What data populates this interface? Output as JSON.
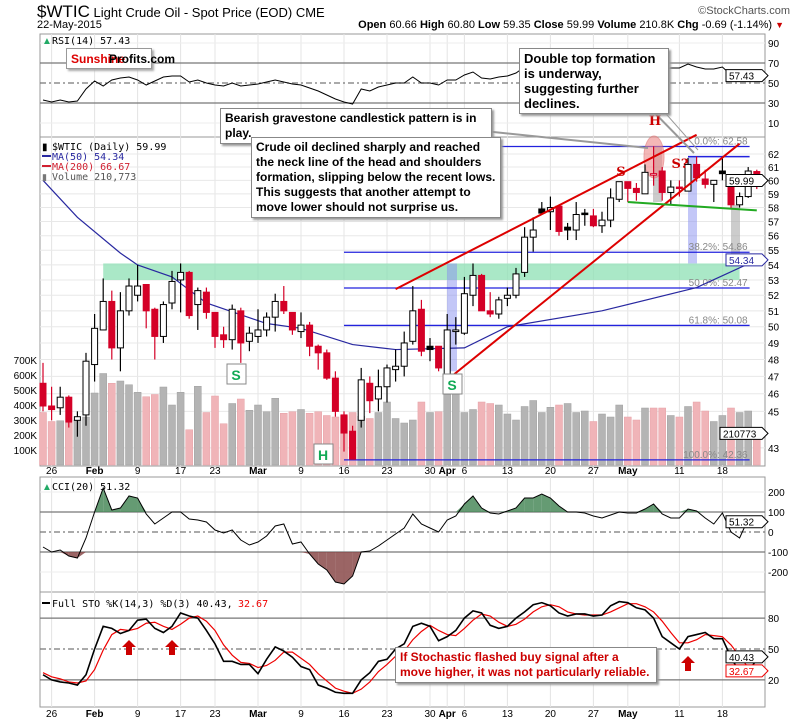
{
  "header": {
    "symbol": "$WTIC",
    "name": "Light Crude Oil - Spot Price (EOD)",
    "exchange": "CME",
    "date": "22-May-2015",
    "brand": "©StockCharts.com",
    "quote": {
      "open_label": "Open",
      "open": "60.66",
      "high_label": "High",
      "high": "60.80",
      "low_label": "Low",
      "low": "59.35",
      "close_label": "Close",
      "close": "59.99",
      "volume_label": "Volume",
      "volume": "210.8K",
      "chg_label": "Chg",
      "chg": "-0.69 (-1.14%)"
    }
  },
  "watermark": {
    "part1": "Sunshine",
    "part2": "Profits.com"
  },
  "panels": {
    "rsi": {
      "legend": "RSI(14) 57.43",
      "ticks": [
        "90",
        "70",
        "50",
        "30",
        "10"
      ],
      "last": "57.43"
    },
    "price": {
      "legend": "$WTIC (Daily) 59.99",
      "ma50": "MA(50) 54.34",
      "ma200": "MA(200) 66.67",
      "volume": "Volume 210,773",
      "ticks": [
        "62",
        "61",
        "60",
        "59",
        "58",
        "57",
        "56",
        "55",
        "54",
        "53",
        "52",
        "51",
        "50",
        "49",
        "48",
        "47",
        "46",
        "45",
        "43"
      ],
      "vol_ticks": [
        "700K",
        "600K",
        "500K",
        "400K",
        "300K",
        "200K",
        "100K"
      ],
      "last": "59.99",
      "ma_last": "54.34",
      "vol_last": "210773"
    },
    "cci": {
      "legend": "CCI(20) 51.32",
      "ticks": [
        "200",
        "100",
        "0",
        "-100",
        "-200"
      ],
      "last": "51.32"
    },
    "sto": {
      "legend_a": "Full STO %K(14,3) %D(3) 40.43,",
      "legend_b": "32.67",
      "ticks": [
        "80",
        "50",
        "20"
      ],
      "k_last": "40.43",
      "d_last": "32.67"
    }
  },
  "xaxis": [
    {
      "label": "26",
      "date": "1/26"
    },
    {
      "label": "Feb",
      "date": "2/2",
      "bold": true
    },
    {
      "label": "9",
      "date": "2/9"
    },
    {
      "label": "17",
      "date": "2/17"
    },
    {
      "label": "23",
      "date": "2/23"
    },
    {
      "label": "Mar",
      "date": "3/2",
      "bold": true
    },
    {
      "label": "9",
      "date": "3/9"
    },
    {
      "label": "16",
      "date": "3/16"
    },
    {
      "label": "23",
      "date": "3/23"
    },
    {
      "label": "30",
      "date": "3/30"
    },
    {
      "label": "Apr",
      "date": "4/1",
      "bold": true
    },
    {
      "label": "6",
      "date": "4/6"
    },
    {
      "label": "13",
      "date": "4/13"
    },
    {
      "label": "20",
      "date": "4/20"
    },
    {
      "label": "27",
      "date": "4/27"
    },
    {
      "label": "May",
      "date": "5/1",
      "bold": true
    },
    {
      "label": "11",
      "date": "5/11"
    },
    {
      "label": "18",
      "date": "5/18"
    }
  ],
  "annotations": {
    "double_top": "Double top formation is underway, suggesting further declines.",
    "gravestone": "Bearish gravestone candlestick pattern is in play.",
    "neckline": "Crude oil declined sharply and reached the neck line of the head and shoulders formation, slipping below the recent lows. This suggests that another attempt to move lower should not surprise us.",
    "stochastic": "If Stochastic flashed buy signal after a move higher, it was not particularly reliable.",
    "pattern_labels": {
      "head_red": "H",
      "shoulder_red": "S",
      "shoulder_q": "S?",
      "shoulder_green_1": "S",
      "shoulder_green_2": "S",
      "head_green": "H"
    }
  },
  "fib_levels": [
    {
      "label": "0.0%: 62.58",
      "price": 62.58
    },
    {
      "label": "38.2%: 54.86",
      "price": 54.86
    },
    {
      "label": "50.0%: 52.47",
      "price": 52.47
    },
    {
      "label": "61.8%: 50.08",
      "price": 50.08
    },
    {
      "label": "100.0%: 42.36",
      "price": 42.36
    }
  ],
  "colors": {
    "down": "#d40027",
    "up": "#000000",
    "volume_up": "#b4b4b4",
    "volume_down": "#f0b4b8",
    "ma50": "#2828a0",
    "fib": "#2222dd",
    "channel": "#dd0000",
    "neckline": "#22aa22",
    "zone": "#8ee0b4",
    "pattern_green": "#11aa55"
  },
  "chart_data": {
    "type": "candlestick",
    "price_scale": "log",
    "ylim": [
      42.2,
      63.2
    ],
    "candles_fields": [
      "date",
      "open",
      "high",
      "low",
      "close",
      "volume_k"
    ],
    "candles": [
      [
        "1/23",
        46.6,
        47.8,
        45.0,
        45.3,
        350
      ],
      [
        "1/26",
        45.3,
        46.4,
        44.5,
        45.1,
        290
      ],
      [
        "1/27",
        45.2,
        46.4,
        44.8,
        45.8,
        295
      ],
      [
        "1/28",
        45.8,
        45.9,
        44.1,
        44.4,
        280
      ],
      [
        "1/29",
        44.5,
        45.0,
        43.6,
        44.7,
        300
      ],
      [
        "1/30",
        44.8,
        48.4,
        44.2,
        47.9,
        320
      ],
      [
        "2/2",
        47.7,
        50.8,
        46.7,
        49.9,
        480
      ],
      [
        "2/3",
        49.8,
        53.1,
        49.8,
        51.6,
        610
      ],
      [
        "2/4",
        51.6,
        52.3,
        48.0,
        48.7,
        545
      ],
      [
        "2/5",
        48.7,
        52.2,
        47.3,
        51.0,
        560
      ],
      [
        "2/6",
        51.0,
        53.1,
        50.7,
        52.6,
        535
      ],
      [
        "2/9",
        52.0,
        54.0,
        51.6,
        52.6,
        485
      ],
      [
        "2/10",
        52.7,
        52.7,
        49.9,
        51.0,
        455
      ],
      [
        "2/11",
        51.1,
        51.2,
        48.0,
        49.4,
        470
      ],
      [
        "2/12",
        49.4,
        51.6,
        49.0,
        51.4,
        520
      ],
      [
        "2/13",
        51.5,
        53.6,
        51.1,
        52.9,
        400
      ],
      [
        "2/17",
        53.0,
        54.1,
        50.9,
        53.5,
        485
      ],
      [
        "2/18",
        53.5,
        53.6,
        50.5,
        50.7,
        235
      ],
      [
        "2/19",
        51.4,
        52.5,
        49.8,
        52.3,
        525
      ],
      [
        "2/20",
        52.2,
        52.5,
        50.5,
        50.9,
        350
      ],
      [
        "2/23",
        50.9,
        50.9,
        48.7,
        49.4,
        460
      ],
      [
        "2/24",
        49.5,
        50.0,
        48.7,
        49.2,
        275
      ],
      [
        "2/25",
        49.2,
        51.4,
        48.6,
        51.1,
        410
      ],
      [
        "2/26",
        51.0,
        51.2,
        47.8,
        49.0,
        440
      ],
      [
        "2/27",
        49.1,
        50.0,
        48.5,
        49.6,
        365
      ],
      [
        "3/2",
        49.4,
        51.1,
        49.0,
        49.8,
        400
      ],
      [
        "3/3",
        49.8,
        50.9,
        49.4,
        50.6,
        355
      ],
      [
        "3/4",
        50.6,
        52.1,
        49.7,
        51.6,
        445
      ],
      [
        "3/5",
        51.6,
        52.6,
        50.8,
        51.0,
        345
      ],
      [
        "3/6",
        50.9,
        50.9,
        49.5,
        49.8,
        355
      ],
      [
        "3/9",
        49.7,
        50.9,
        49.3,
        50.1,
        370
      ],
      [
        "3/10",
        50.1,
        50.3,
        48.2,
        48.8,
        345
      ],
      [
        "3/11",
        48.8,
        48.9,
        47.4,
        48.4,
        355
      ],
      [
        "3/12",
        48.4,
        48.6,
        46.8,
        46.9,
        330
      ],
      [
        "3/13",
        46.9,
        47.3,
        44.7,
        45.0,
        320
      ],
      [
        "3/16",
        44.8,
        45.0,
        42.8,
        43.8,
        330
      ],
      [
        "3/17",
        43.9,
        44.2,
        42.4,
        42.4,
        350
      ],
      [
        "3/18",
        44.5,
        47.5,
        44.1,
        46.8,
        325
      ],
      [
        "3/19",
        46.6,
        47.0,
        44.9,
        45.6,
        310
      ],
      [
        "3/20",
        45.7,
        47.4,
        45.0,
        46.4,
        350
      ],
      [
        "3/23",
        46.4,
        47.7,
        45.5,
        47.5,
        420
      ],
      [
        "3/24",
        47.4,
        48.6,
        46.7,
        47.6,
        310
      ],
      [
        "3/25",
        47.6,
        49.7,
        47.0,
        49.0,
        280
      ],
      [
        "3/26",
        49.1,
        52.6,
        48.9,
        51.0,
        300
      ],
      [
        "3/27",
        51.1,
        51.7,
        48.2,
        48.5,
        420
      ],
      [
        "3/30",
        48.8,
        49.3,
        47.9,
        48.6,
        350
      ],
      [
        "3/31",
        48.8,
        48.8,
        47.3,
        47.5,
        355
      ],
      [
        "4/1",
        47.1,
        50.8,
        46.9,
        49.8,
        470
      ],
      [
        "4/2",
        49.7,
        50.6,
        48.9,
        49.8,
        530
      ],
      [
        "4/6",
        49.6,
        53.2,
        49.5,
        52.1,
        350
      ],
      [
        "4/7",
        52.0,
        54.1,
        51.3,
        53.3,
        370
      ],
      [
        "4/8",
        53.3,
        53.4,
        51.0,
        51.0,
        420
      ],
      [
        "4/9",
        51.0,
        52.2,
        50.6,
        50.8,
        410
      ],
      [
        "4/10",
        50.8,
        51.9,
        50.5,
        51.7,
        400
      ],
      [
        "4/13",
        51.8,
        52.5,
        51.3,
        52.0,
        340
      ],
      [
        "4/14",
        52.0,
        53.8,
        51.8,
        53.4,
        300
      ],
      [
        "4/15",
        53.5,
        56.6,
        53.2,
        55.9,
        390
      ],
      [
        "4/16",
        55.9,
        57.3,
        54.9,
        56.4,
        430
      ],
      [
        "4/17",
        57.9,
        58.4,
        57.5,
        57.6,
        350
      ],
      [
        "4/20",
        57.7,
        58.8,
        56.4,
        58.0,
        385
      ],
      [
        "4/21",
        58.1,
        58.2,
        56.0,
        56.3,
        400
      ],
      [
        "4/22",
        56.6,
        56.9,
        55.7,
        56.4,
        410
      ],
      [
        "4/23",
        56.4,
        58.4,
        55.7,
        57.5,
        350
      ],
      [
        "4/24",
        57.6,
        57.9,
        56.7,
        57.5,
        360
      ],
      [
        "4/27",
        57.4,
        57.9,
        56.6,
        56.7,
        290
      ],
      [
        "4/28",
        56.7,
        57.7,
        56.2,
        57.1,
        340
      ],
      [
        "4/29",
        57.1,
        59.4,
        56.6,
        58.7,
        320
      ],
      [
        "4/30",
        58.6,
        59.9,
        58.4,
        59.9,
        400
      ],
      [
        "5/1",
        59.9,
        59.9,
        58.4,
        59.4,
        320
      ],
      [
        "5/4",
        59.4,
        59.8,
        58.5,
        59.1,
        300
      ],
      [
        "5/5",
        59.0,
        61.2,
        59.0,
        60.6,
        380
      ],
      [
        "5/6",
        60.4,
        62.6,
        59.6,
        60.5,
        380
      ],
      [
        "5/7",
        60.7,
        61.0,
        58.5,
        59.1,
        380
      ],
      [
        "5/8",
        59.1,
        60.0,
        58.2,
        59.5,
        330
      ],
      [
        "5/11",
        59.5,
        60.0,
        58.8,
        59.4,
        320
      ],
      [
        "5/12",
        59.2,
        61.7,
        59.2,
        61.2,
        390
      ],
      [
        "5/13",
        61.2,
        61.8,
        59.9,
        60.2,
        420
      ],
      [
        "5/14",
        60.1,
        60.8,
        59.4,
        59.7,
        360
      ],
      [
        "5/15",
        59.7,
        60.0,
        58.4,
        60.0,
        290
      ],
      [
        "5/18",
        60.7,
        61.8,
        60.0,
        60.5,
        330
      ],
      [
        "5/19",
        60.3,
        60.4,
        57.9,
        58.2,
        380
      ],
      [
        "5/20",
        58.2,
        59.1,
        58.0,
        58.8,
        350
      ],
      [
        "5/21",
        58.8,
        61.0,
        58.7,
        60.7,
        360
      ],
      [
        "5/22",
        60.66,
        60.8,
        59.35,
        59.99,
        210.773
      ]
    ],
    "ma50": [
      [
        "1/23",
        60.0
      ],
      [
        "1/29",
        57.3
      ],
      [
        "2/5",
        54.8
      ],
      [
        "2/9",
        54.0
      ],
      [
        "2/13",
        53.2
      ],
      [
        "2/20",
        51.5
      ],
      [
        "3/3",
        50.2
      ],
      [
        "3/9",
        49.9
      ],
      [
        "3/17",
        48.9
      ],
      [
        "3/24",
        48.6
      ],
      [
        "4/6",
        48.7
      ],
      [
        "4/13",
        50.0
      ],
      [
        "4/28",
        51.0
      ],
      [
        "5/13",
        52.5
      ],
      [
        "5/22",
        54.34
      ]
    ],
    "resistance_zone": {
      "from": "2/3",
      "to": "5/20",
      "low": 53.0,
      "high": 54.1
    },
    "channel_upper": [
      [
        "3/24",
        52.4
      ],
      [
        "5/13",
        63.5
      ]
    ],
    "channel_lower": [
      [
        "4/1",
        46.8
      ],
      [
        "5/20",
        62.8
      ]
    ],
    "neckline": [
      [
        "5/1",
        58.4
      ],
      [
        "5/22",
        57.8
      ]
    ],
    "fib_from": "3/16",
    "fib_to": "5/20",
    "resistance_line": {
      "from": "5/12",
      "to": "5/20",
      "price": 61.8
    },
    "rsi": [
      33,
      31,
      33,
      31,
      32,
      44,
      52,
      47,
      53,
      55,
      56,
      53,
      48,
      52,
      56,
      57,
      57,
      51,
      53,
      50,
      48,
      47,
      50,
      47,
      48,
      49,
      51,
      53,
      51,
      49,
      48,
      45,
      42,
      38,
      34,
      31,
      29,
      44,
      42,
      46,
      48,
      50,
      50,
      56,
      50,
      50,
      48,
      53,
      53,
      58,
      61,
      55,
      54,
      56,
      57,
      60,
      66,
      67,
      69,
      70,
      64,
      62,
      64,
      64,
      62,
      63,
      66,
      68,
      66,
      65,
      68,
      69,
      64,
      65,
      65,
      69,
      66,
      64,
      64,
      66,
      58,
      60,
      62,
      57.43
    ],
    "cci": [
      -75,
      -100,
      -90,
      -120,
      -130,
      -30,
      100,
      220,
      110,
      120,
      180,
      170,
      90,
      40,
      70,
      100,
      100,
      65,
      60,
      50,
      10,
      -5,
      10,
      -40,
      -65,
      -50,
      -20,
      30,
      40,
      -60,
      -50,
      -110,
      -160,
      -190,
      -250,
      -260,
      -220,
      -100,
      -95,
      -70,
      -40,
      -10,
      20,
      90,
      40,
      20,
      0,
      60,
      80,
      140,
      180,
      120,
      95,
      90,
      105,
      120,
      170,
      170,
      190,
      170,
      130,
      100,
      100,
      95,
      80,
      70,
      85,
      100,
      95,
      95,
      115,
      140,
      90,
      70,
      70,
      115,
      105,
      70,
      40,
      95,
      0,
      -30,
      65,
      51.32
    ],
    "sto_k": [
      25,
      20,
      18,
      17,
      15,
      25,
      50,
      72,
      70,
      65,
      68,
      78,
      79,
      70,
      66,
      72,
      85,
      82,
      80,
      68,
      55,
      38,
      38,
      35,
      35,
      26,
      40,
      52,
      48,
      42,
      33,
      30,
      15,
      12,
      8,
      7,
      7,
      20,
      27,
      38,
      40,
      50,
      55,
      72,
      75,
      72,
      58,
      62,
      68,
      80,
      87,
      85,
      73,
      70,
      72,
      80,
      86,
      93,
      95,
      92,
      85,
      82,
      84,
      84,
      82,
      83,
      92,
      96,
      95,
      90,
      88,
      80,
      62,
      56,
      50,
      62,
      64,
      66,
      60,
      60,
      42,
      27,
      27,
      40.43
    ],
    "sto_d": [
      27,
      23,
      21,
      18,
      17,
      19,
      30,
      49,
      64,
      69,
      68,
      70,
      75,
      76,
      72,
      69,
      74,
      80,
      82,
      77,
      68,
      54,
      44,
      37,
      36,
      32,
      34,
      39,
      47,
      47,
      41,
      35,
      26,
      19,
      12,
      9,
      7,
      11,
      18,
      28,
      35,
      43,
      48,
      59,
      67,
      73,
      68,
      64,
      63,
      70,
      78,
      84,
      82,
      76,
      72,
      74,
      79,
      86,
      91,
      93,
      91,
      86,
      84,
      83,
      83,
      83,
      86,
      90,
      94,
      94,
      91,
      86,
      77,
      66,
      56,
      56,
      59,
      64,
      63,
      62,
      54,
      43,
      32,
      32.67
    ],
    "buy_arrows": [
      "2/6",
      "2/13",
      "5/12"
    ],
    "rsi_levels": [
      70,
      50,
      30
    ],
    "cci_levels": [
      100,
      0,
      -100
    ],
    "sto_levels": [
      80,
      50,
      20
    ]
  }
}
